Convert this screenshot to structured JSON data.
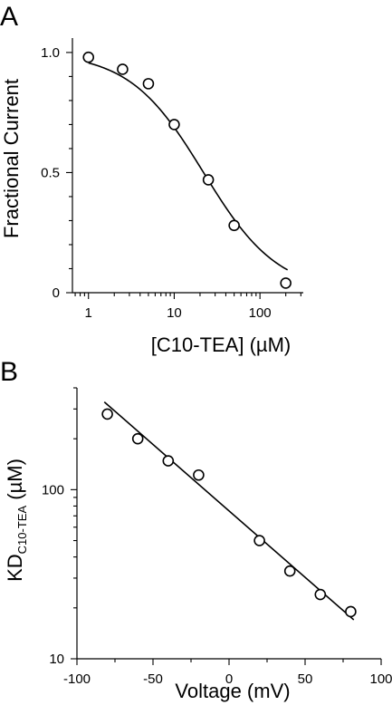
{
  "chart_data": [
    {
      "panel": "A",
      "type": "scatter",
      "x_scale": "log",
      "xlim": [
        0.65,
        320
      ],
      "ylim": [
        0,
        1.06
      ],
      "xlabel": "[C10-TEA] (µM)",
      "ylabel": "Fractional Current",
      "x_ticks": [
        1,
        10,
        100
      ],
      "x_tick_labels": [
        "1",
        "10",
        "100"
      ],
      "y_ticks": [
        0,
        0.5,
        1.0
      ],
      "y_tick_labels": [
        "0",
        "0.5",
        "1.0"
      ],
      "points": [
        {
          "x": 1,
          "y": 0.98
        },
        {
          "x": 2.5,
          "y": 0.93
        },
        {
          "x": 5,
          "y": 0.87
        },
        {
          "x": 10,
          "y": 0.7
        },
        {
          "x": 25,
          "y": 0.47
        },
        {
          "x": 50,
          "y": 0.28
        },
        {
          "x": 200,
          "y": 0.04
        }
      ],
      "fit": {
        "model": "hill",
        "ic50": 22,
        "hill": 1.0,
        "x_range": [
          1,
          210
        ]
      },
      "grid": false
    },
    {
      "panel": "B",
      "type": "scatter",
      "y_scale": "log",
      "xlim": [
        -100,
        100
      ],
      "ylim": [
        10,
        400
      ],
      "xlabel": "Voltage (mV)",
      "ylabel_main": "KD",
      "ylabel_sub": "C10-TEA",
      "ylabel_unit": "(µM)",
      "x_ticks": [
        -100,
        -50,
        0,
        50,
        100
      ],
      "x_tick_labels": [
        "-100",
        "-50",
        "0",
        "50",
        "100"
      ],
      "y_ticks": [
        10,
        100
      ],
      "y_tick_labels": [
        "10",
        "100"
      ],
      "points": [
        {
          "x": -80,
          "y": 280
        },
        {
          "x": -60,
          "y": 200
        },
        {
          "x": -40,
          "y": 148
        },
        {
          "x": -20,
          "y": 122
        },
        {
          "x": 20,
          "y": 50
        },
        {
          "x": 40,
          "y": 33
        },
        {
          "x": 60,
          "y": 24
        },
        {
          "x": 80,
          "y": 19
        }
      ],
      "fit": {
        "model": "exponential",
        "x_range": [
          -82,
          82
        ],
        "y_range": [
          330,
          17
        ]
      },
      "grid": false
    }
  ]
}
